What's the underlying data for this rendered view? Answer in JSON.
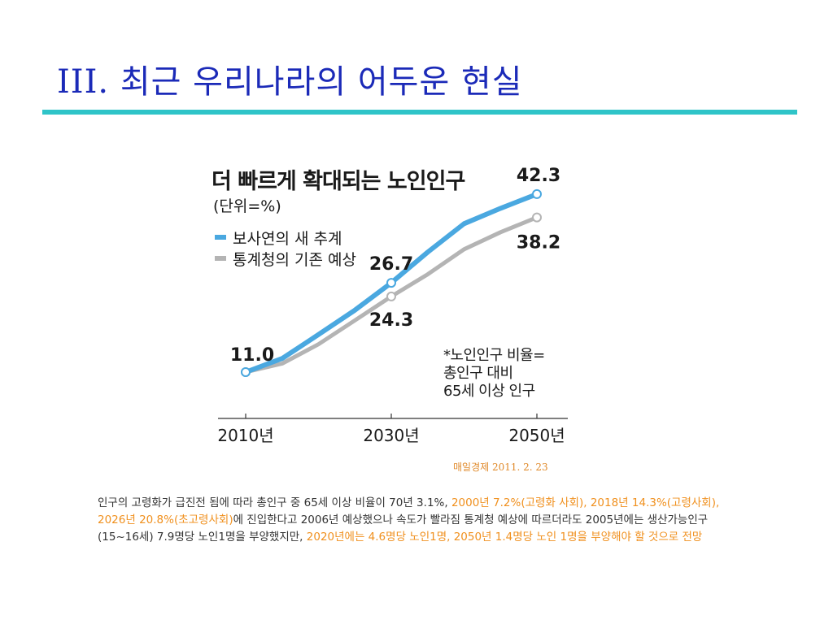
{
  "slide": {
    "title": "III. 최근 우리나라의 어두운 현실"
  },
  "chart_data": {
    "type": "line",
    "title": "더 빠르게 확대되는 노인인구",
    "unit": "(단위=%)",
    "x": [
      2010,
      2015,
      2020,
      2025,
      2030,
      2035,
      2040,
      2045,
      2050
    ],
    "x_tick_labels": [
      "2010년",
      "2030년",
      "2050년"
    ],
    "series": [
      {
        "name": "보사연의 새 추계",
        "color": "#4aa8e0",
        "values": [
          11.0,
          13.4,
          17.6,
          21.9,
          26.7,
          32.1,
          37.1,
          39.8,
          42.3
        ]
      },
      {
        "name": "통계청의 기존 예상",
        "color": "#b4b4b4",
        "values": [
          11.0,
          12.5,
          15.9,
          20.1,
          24.3,
          28.2,
          32.6,
          35.6,
          38.2
        ]
      }
    ],
    "data_labels": [
      {
        "text": "11.0"
      },
      {
        "text": "26.7"
      },
      {
        "text": "24.3"
      },
      {
        "text": "42.3"
      },
      {
        "text": "38.2"
      }
    ],
    "note": "*노인인구 비율=\n총인구 대비\n65세 이상 인구",
    "ylim": [
      0,
      50
    ]
  },
  "source": "매일경제 2011. 2. 23",
  "caption": {
    "p1": "인구의 고령화가 급진전 됨에 따라 총인구 중 65세 이상 비율이 70년 3.1%, ",
    "h1": "2000년 7.2%(고령화 사회), 2018년 14.3%(고령사회), 2026년 20.8%(초고령사회)",
    "p2": "에 진입한다고 2006년 예상했으나 속도가 빨라짐 통계청 예상에 따르더라도 2005년에는 생산가능인구(15~16세) 7.9명당 노인1명을 부양했지만, ",
    "h2": "2020년에는 4.6명당  노인1명, 2050년 1.4명당 노인 1명을 부양해야 할 것으로 전망"
  }
}
